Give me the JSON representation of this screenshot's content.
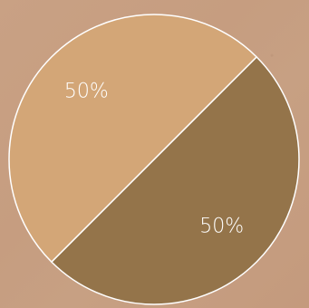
{
  "chart_data": {
    "type": "pie",
    "slices": [
      {
        "label_text": "50%",
        "value": 50,
        "color": "#94744a"
      },
      {
        "label_text": "50%",
        "value": 50,
        "color": "#d3a677"
      }
    ],
    "slice_border_color": "#ffffff",
    "legend": "none",
    "grid": false
  }
}
